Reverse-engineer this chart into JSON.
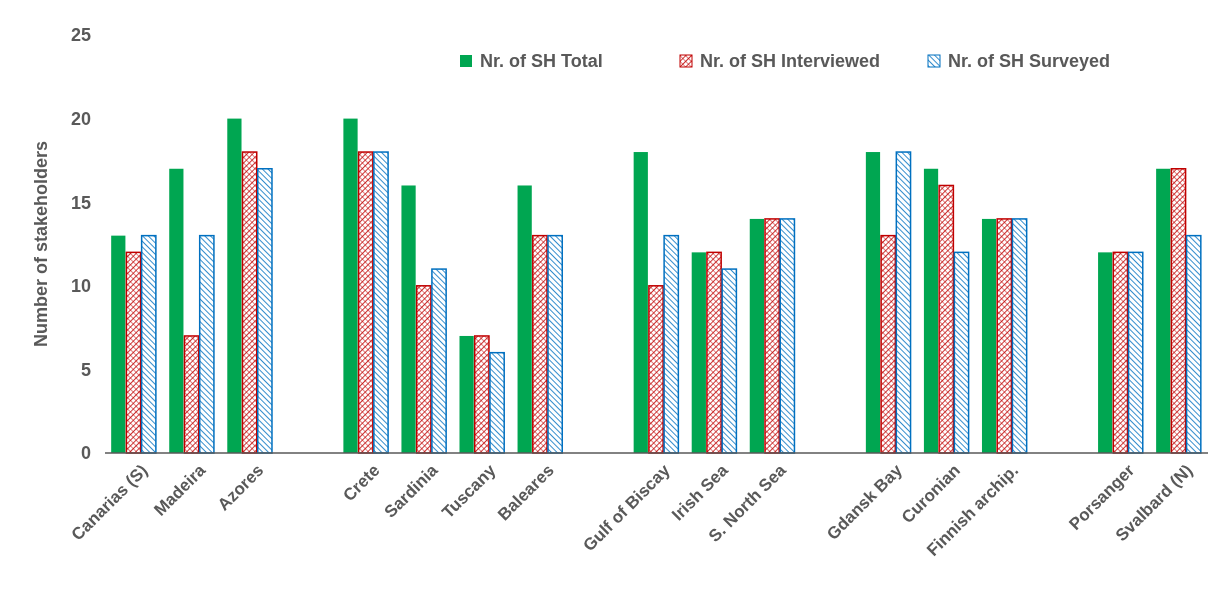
{
  "chart_data": {
    "type": "bar",
    "ylabel": "Number of stakeholders",
    "categories": [
      "Canarias (S)",
      "Madeira",
      "Azores",
      null,
      "Crete",
      "Sardinia",
      "Tuscany",
      "Baleares",
      null,
      "Gulf of Biscay",
      "Irish Sea",
      "S. North Sea",
      null,
      "Gdansk Bay",
      "Curonian",
      "Finnish archip.",
      null,
      "Porsanger",
      "Svalbard (N)"
    ],
    "series": [
      {
        "name": "Nr. of SH Total",
        "color": "#00a651",
        "values": [
          13,
          17,
          20,
          null,
          20,
          16,
          7,
          16,
          null,
          18,
          12,
          14,
          null,
          18,
          17,
          14,
          null,
          12,
          17
        ]
      },
      {
        "name": "Nr. of SH Interviewed",
        "color": "#c00000",
        "values": [
          12,
          7,
          18,
          null,
          18,
          10,
          7,
          13,
          null,
          10,
          12,
          14,
          null,
          13,
          16,
          14,
          null,
          12,
          17
        ]
      },
      {
        "name": "Nr. of SH Surveyed",
        "color": "#0070c0",
        "values": [
          13,
          13,
          17,
          null,
          18,
          11,
          6,
          13,
          null,
          13,
          11,
          14,
          null,
          18,
          12,
          14,
          null,
          12,
          13
        ]
      }
    ],
    "ylim": [
      0,
      25
    ],
    "yticks": [
      0,
      5,
      10,
      15,
      20,
      25
    ],
    "grid": false,
    "legend": "top right"
  }
}
